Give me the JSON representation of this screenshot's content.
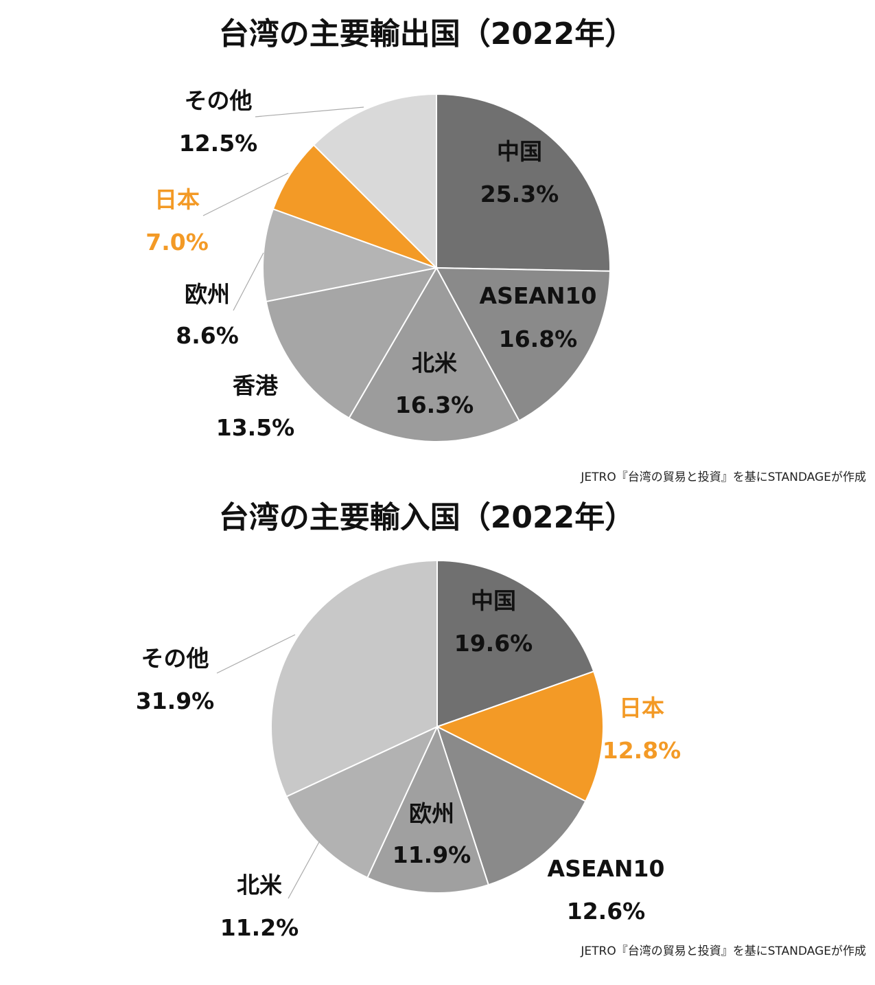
{
  "chart_data": [
    {
      "type": "pie",
      "title": "台湾の主要輸出国（2022年）",
      "source": "JETRO『台湾の貿易と投資』を基にSTANDAGEが作成",
      "slices": [
        {
          "label": "中国",
          "value_label": "25.3%",
          "value": 25.3,
          "color": "#707070"
        },
        {
          "label": "ASEAN10",
          "value_label": "16.8%",
          "value": 16.8,
          "color": "#8a8a8a"
        },
        {
          "label": "北米",
          "value_label": "16.3%",
          "value": 16.3,
          "color": "#9c9c9c"
        },
        {
          "label": "香港",
          "value_label": "13.5%",
          "value": 13.5,
          "color": "#a6a6a6"
        },
        {
          "label": "欧州",
          "value_label": "8.6%",
          "value": 8.6,
          "color": "#b4b4b4"
        },
        {
          "label": "日本",
          "value_label": "7.0%",
          "value": 7.0,
          "color": "#f39a26"
        },
        {
          "label": "その他",
          "value_label": "12.5%",
          "value": 12.5,
          "color": "#d9d9d9"
        }
      ]
    },
    {
      "type": "pie",
      "title": "台湾の主要輸入国（2022年）",
      "source": "JETRO『台湾の貿易と投資』を基にSTANDAGEが作成",
      "slices": [
        {
          "label": "中国",
          "value_label": "19.6%",
          "value": 19.6,
          "color": "#707070"
        },
        {
          "label": "日本",
          "value_label": "12.8%",
          "value": 12.8,
          "color": "#f39a26"
        },
        {
          "label": "ASEAN10",
          "value_label": "12.6%",
          "value": 12.6,
          "color": "#8a8a8a"
        },
        {
          "label": "欧州",
          "value_label": "11.9%",
          "value": 11.9,
          "color": "#a0a0a0"
        },
        {
          "label": "北米",
          "value_label": "11.2%",
          "value": 11.2,
          "color": "#b2b2b2"
        },
        {
          "label": "その他",
          "value_label": "31.9%",
          "value": 31.9,
          "color": "#c8c8c8"
        }
      ]
    }
  ],
  "colors": {
    "text": "#111111",
    "highlight": "#f39a26",
    "leader": "#aaaaaa"
  }
}
